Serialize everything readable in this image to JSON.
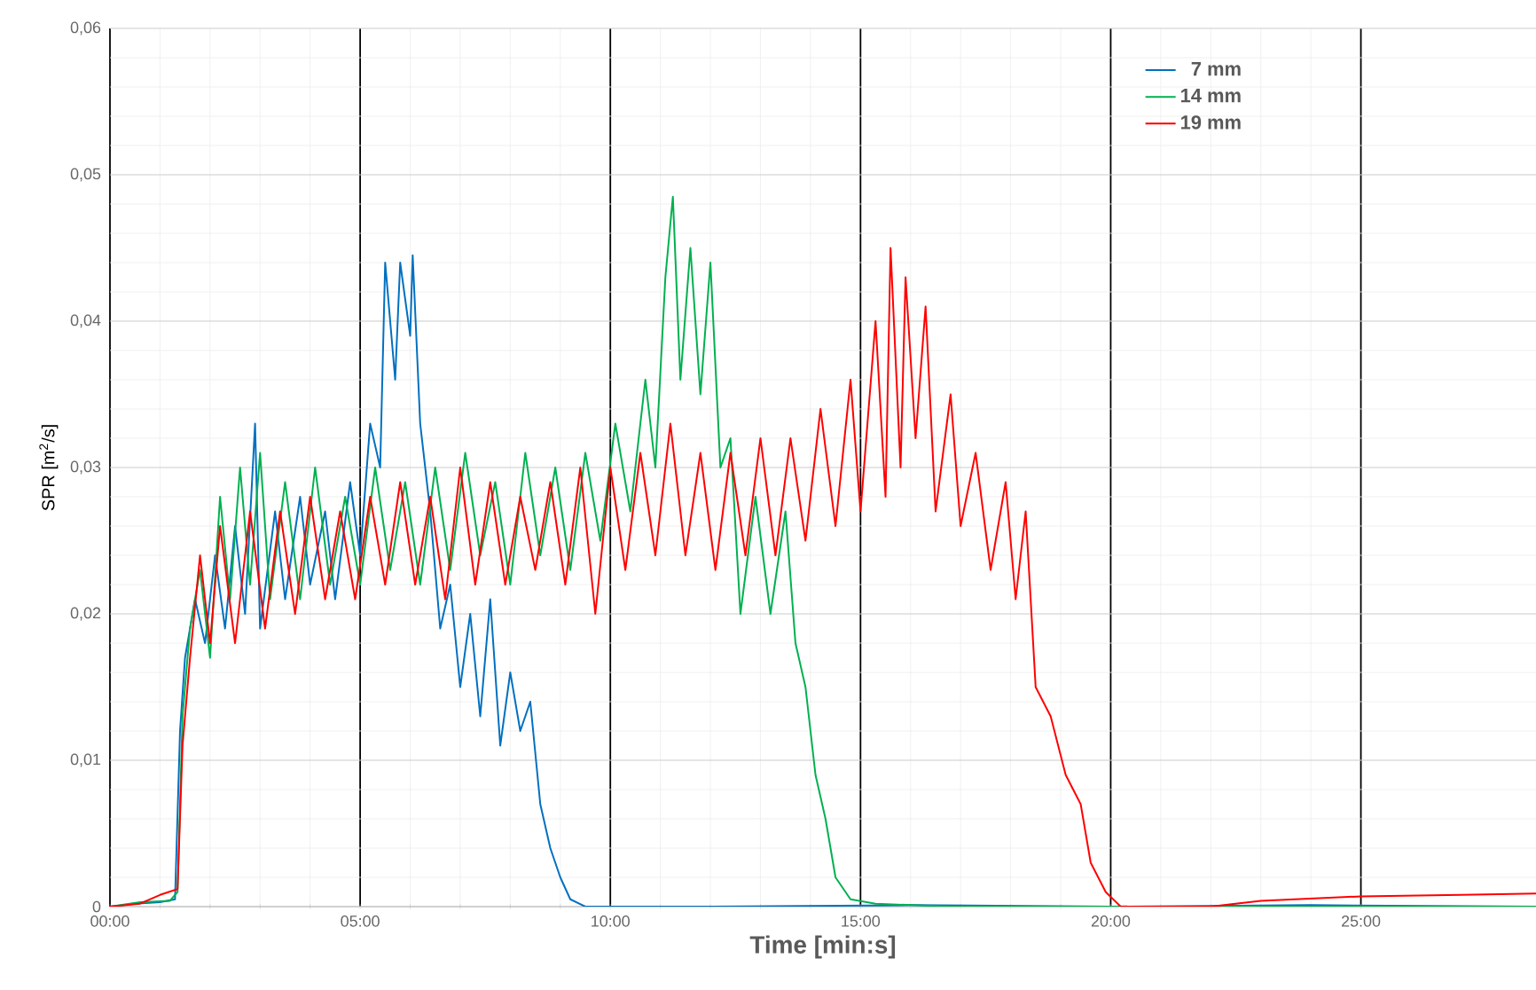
{
  "chart_data": {
    "type": "line",
    "xlabel": "Time [min:s]",
    "ylabel": "SPR [m$^{2}$/s]",
    "xlim": [
      0,
      28.5
    ],
    "ylim": [
      0,
      0.06
    ],
    "xticks": [
      {
        "value": 0,
        "label": "00:00"
      },
      {
        "value": 5,
        "label": "05:00"
      },
      {
        "value": 10,
        "label": "10:00"
      },
      {
        "value": 15,
        "label": "15:00"
      },
      {
        "value": 20,
        "label": "20:00"
      },
      {
        "value": 25,
        "label": "25:00"
      }
    ],
    "yticks": [
      {
        "value": 0,
        "label": "0"
      },
      {
        "value": 0.01,
        "label": "0,01"
      },
      {
        "value": 0.02,
        "label": "0,02"
      },
      {
        "value": 0.03,
        "label": "0,03"
      },
      {
        "value": 0.04,
        "label": "0,04"
      },
      {
        "value": 0.05,
        "label": "0,05"
      },
      {
        "value": 0.06,
        "label": "0,06"
      }
    ],
    "grid": true,
    "legend": "top right",
    "marker": "none",
    "line_style": "solid",
    "series": [
      {
        "name": "7 mm",
        "color": "#0070c0",
        "x": [
          0,
          0.5,
          1.0,
          1.3,
          1.4,
          1.5,
          1.7,
          1.9,
          2.1,
          2.3,
          2.5,
          2.7,
          2.9,
          3.0,
          3.3,
          3.5,
          3.8,
          4.0,
          4.3,
          4.5,
          4.8,
          5.0,
          5.2,
          5.4,
          5.5,
          5.7,
          5.8,
          6.0,
          6.05,
          6.2,
          6.4,
          6.6,
          6.8,
          7.0,
          7.2,
          7.4,
          7.6,
          7.8,
          8.0,
          8.2,
          8.4,
          8.6,
          8.8,
          9.0,
          9.2,
          9.5,
          12,
          16,
          20,
          24,
          28.5
        ],
        "values": [
          0,
          0.0002,
          0.0003,
          0.0005,
          0.012,
          0.017,
          0.021,
          0.018,
          0.024,
          0.019,
          0.026,
          0.02,
          0.033,
          0.019,
          0.027,
          0.021,
          0.028,
          0.022,
          0.027,
          0.021,
          0.029,
          0.024,
          0.033,
          0.03,
          0.044,
          0.036,
          0.044,
          0.039,
          0.0445,
          0.033,
          0.027,
          0.019,
          0.022,
          0.015,
          0.02,
          0.013,
          0.021,
          0.011,
          0.016,
          0.012,
          0.014,
          0.007,
          0.004,
          0.002,
          0.0005,
          0,
          0,
          0.0001,
          0,
          0.0001,
          0
        ]
      },
      {
        "name": "14 mm",
        "color": "#00b050",
        "x": [
          0,
          0.6,
          1.2,
          1.35,
          1.45,
          1.6,
          1.8,
          2.0,
          2.2,
          2.4,
          2.6,
          2.8,
          3.0,
          3.2,
          3.5,
          3.8,
          4.1,
          4.4,
          4.7,
          5.0,
          5.3,
          5.6,
          5.9,
          6.2,
          6.5,
          6.8,
          7.1,
          7.4,
          7.7,
          8.0,
          8.3,
          8.6,
          8.9,
          9.2,
          9.5,
          9.8,
          10.1,
          10.4,
          10.7,
          10.9,
          11.1,
          11.25,
          11.4,
          11.6,
          11.8,
          12.0,
          12.2,
          12.4,
          12.6,
          12.9,
          13.2,
          13.5,
          13.7,
          13.9,
          14.1,
          14.3,
          14.5,
          14.8,
          15.3,
          16.8,
          28.5
        ],
        "values": [
          0,
          0.0003,
          0.0004,
          0.001,
          0.013,
          0.019,
          0.023,
          0.017,
          0.028,
          0.021,
          0.03,
          0.022,
          0.031,
          0.021,
          0.029,
          0.021,
          0.03,
          0.022,
          0.028,
          0.022,
          0.03,
          0.023,
          0.029,
          0.022,
          0.03,
          0.023,
          0.031,
          0.024,
          0.029,
          0.022,
          0.031,
          0.024,
          0.03,
          0.023,
          0.031,
          0.025,
          0.033,
          0.027,
          0.036,
          0.03,
          0.043,
          0.0485,
          0.036,
          0.045,
          0.035,
          0.044,
          0.03,
          0.032,
          0.02,
          0.028,
          0.02,
          0.027,
          0.018,
          0.015,
          0.009,
          0.006,
          0.002,
          0.0005,
          0.0002,
          0,
          0
        ]
      },
      {
        "name": "19 mm",
        "color": "#ff0000",
        "x": [
          0,
          0.6,
          1.0,
          1.35,
          1.45,
          1.6,
          1.8,
          2.0,
          2.2,
          2.5,
          2.8,
          3.1,
          3.4,
          3.7,
          4.0,
          4.3,
          4.6,
          4.9,
          5.2,
          5.5,
          5.8,
          6.1,
          6.4,
          6.7,
          7.0,
          7.3,
          7.6,
          7.9,
          8.2,
          8.5,
          8.8,
          9.1,
          9.4,
          9.7,
          10.0,
          10.3,
          10.6,
          10.9,
          11.2,
          11.5,
          11.8,
          12.1,
          12.4,
          12.7,
          13.0,
          13.3,
          13.6,
          13.9,
          14.2,
          14.5,
          14.8,
          15.0,
          15.3,
          15.5,
          15.6,
          15.8,
          15.9,
          16.1,
          16.3,
          16.5,
          16.8,
          17.0,
          17.3,
          17.6,
          17.9,
          18.1,
          18.3,
          18.5,
          18.8,
          19.1,
          19.4,
          19.6,
          19.9,
          20.2,
          22.0,
          23.0,
          25,
          27,
          28.5
        ],
        "values": [
          0,
          0.0002,
          0.0008,
          0.0012,
          0.011,
          0.017,
          0.024,
          0.018,
          0.026,
          0.018,
          0.027,
          0.019,
          0.027,
          0.02,
          0.028,
          0.021,
          0.027,
          0.021,
          0.028,
          0.022,
          0.029,
          0.022,
          0.028,
          0.021,
          0.03,
          0.022,
          0.029,
          0.022,
          0.028,
          0.023,
          0.029,
          0.022,
          0.03,
          0.02,
          0.03,
          0.023,
          0.031,
          0.024,
          0.033,
          0.024,
          0.031,
          0.023,
          0.031,
          0.024,
          0.032,
          0.024,
          0.032,
          0.025,
          0.034,
          0.026,
          0.036,
          0.027,
          0.04,
          0.028,
          0.045,
          0.03,
          0.043,
          0.032,
          0.041,
          0.027,
          0.035,
          0.026,
          0.031,
          0.023,
          0.029,
          0.021,
          0.027,
          0.015,
          0.013,
          0.009,
          0.007,
          0.003,
          0.001,
          0,
          0,
          0.0004,
          0.0007,
          0.0008,
          0.0009
        ]
      }
    ]
  }
}
